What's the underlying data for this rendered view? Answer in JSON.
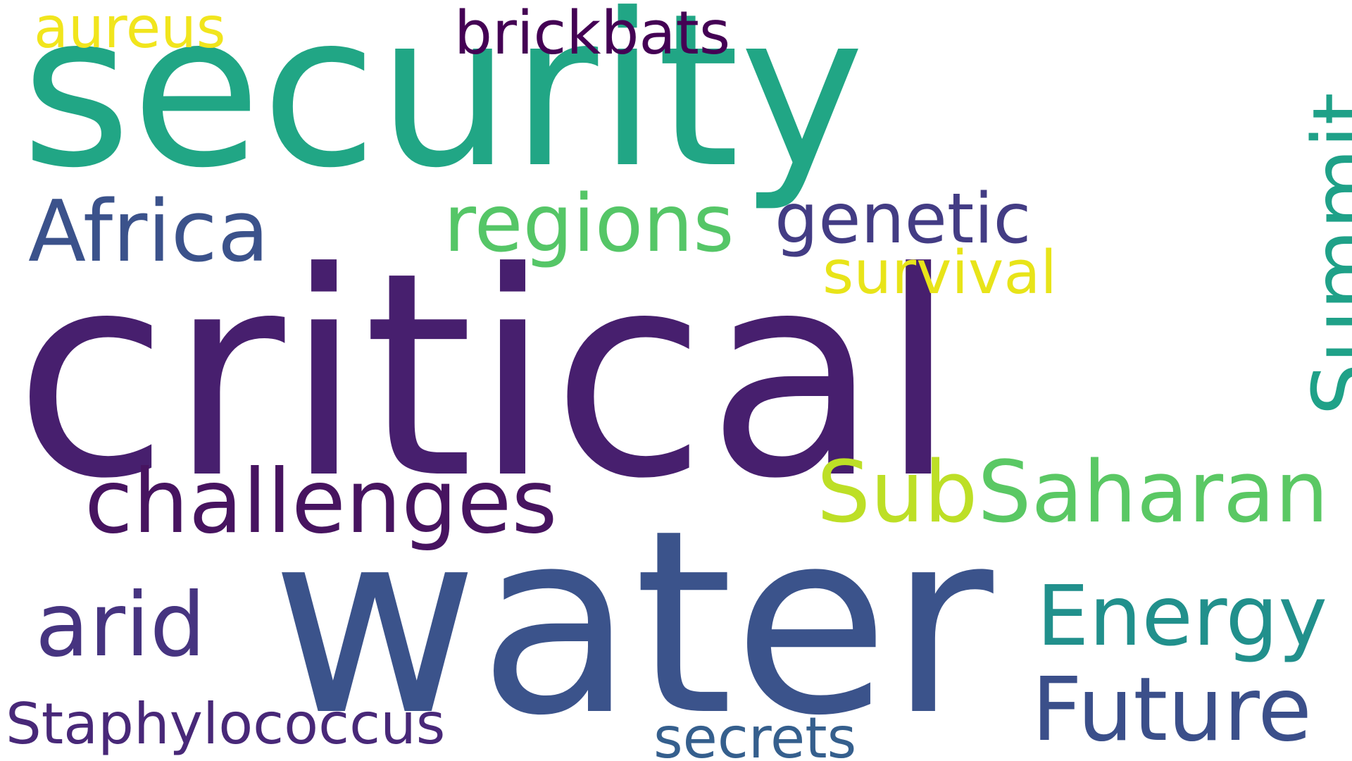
{
  "words": {
    "critical": {
      "text": "critical",
      "color": "#471f6e"
    },
    "security": {
      "text": "security",
      "color": "#21a685"
    },
    "water": {
      "text": "water",
      "color": "#3b538b"
    },
    "challenges": {
      "text": "challenges",
      "color": "#471460"
    },
    "africa": {
      "text": "Africa",
      "color": "#3b528b"
    },
    "regions": {
      "text": "regions",
      "color": "#55c667"
    },
    "subsaharan_sub": {
      "text": "Sub",
      "color": "#bddf26"
    },
    "subsaharan_rest": {
      "text": "Saharan",
      "color": "#5ac864"
    },
    "energy": {
      "text": "Energy",
      "color": "#21908c"
    },
    "future": {
      "text": "Future",
      "color": "#3b4f8a"
    },
    "arid": {
      "text": "arid",
      "color": "#463480"
    },
    "summit": {
      "text": "Summit",
      "color": "#1fa188"
    },
    "genetic": {
      "text": "genetic",
      "color": "#433c84"
    },
    "survival": {
      "text": "survival",
      "color": "#e8e419"
    },
    "brickbats": {
      "text": "brickbats",
      "color": "#440154"
    },
    "aureus": {
      "text": "aureus",
      "color": "#f1e51d"
    },
    "staphylococcus": {
      "text": "Staphylococcus",
      "color": "#482878"
    },
    "secrets": {
      "text": "secrets",
      "color": "#355f8d"
    }
  },
  "background_color": "#ffffff"
}
